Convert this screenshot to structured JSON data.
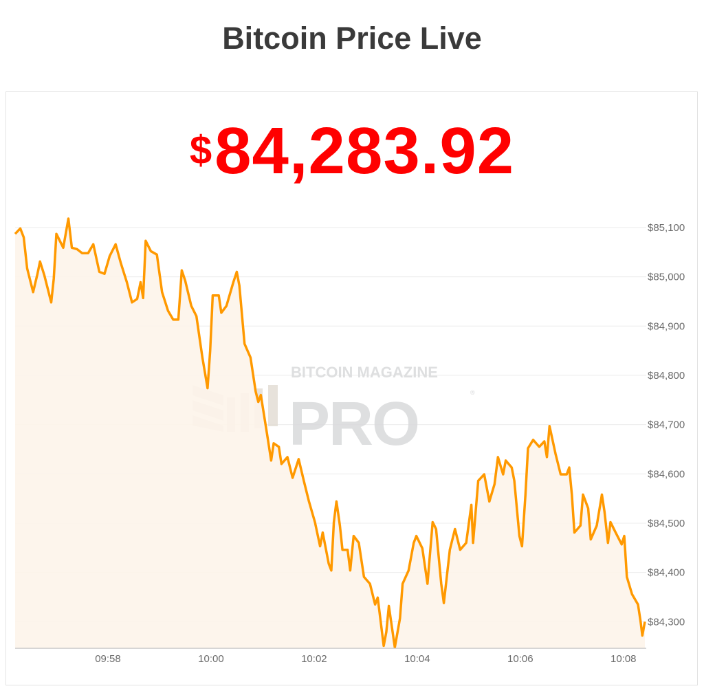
{
  "page": {
    "title": "Bitcoin Price Live"
  },
  "price": {
    "currency_symbol": "$",
    "value": "84,283.92",
    "color": "#ff0000"
  },
  "watermark": {
    "line1": "BITCOIN MAGAZINE",
    "line2": "PRO",
    "mark": "®"
  },
  "chart_data": {
    "type": "area",
    "title": "",
    "xlabel": "",
    "ylabel": "",
    "x_ticks": [
      "09:58",
      "10:00",
      "10:02",
      "10:04",
      "10:06",
      "10:08"
    ],
    "y_ticks": [
      "$84,300",
      "$84,400",
      "$84,500",
      "$84,600",
      "$84,700",
      "$84,800",
      "$84,900",
      "$85,000",
      "$85,100"
    ],
    "y_tick_values": [
      84300,
      84400,
      84500,
      84600,
      84700,
      84800,
      84900,
      85000,
      85100
    ],
    "xlim": [
      "09:56:12",
      "10:08:25"
    ],
    "ylim": [
      84246,
      85118
    ],
    "grid": "horizontal",
    "y_axis_position": "right",
    "line_color": "#ff9900",
    "fill_color": "#fdf4ea",
    "series": [
      {
        "x": [
          "09:56:12",
          "09:56:18",
          "09:56:22",
          "09:56:26",
          "09:56:33",
          "09:56:38",
          "09:56:41",
          "09:56:46",
          "09:56:54",
          "09:56:57",
          "09:57:00",
          "09:57:08",
          "09:57:14",
          "09:57:18",
          "09:57:24",
          "09:57:30",
          "09:57:37",
          "09:57:43",
          "09:57:50",
          "09:57:56",
          "09:58:02",
          "09:58:09",
          "09:58:15",
          "09:58:22",
          "09:58:28",
          "09:58:34",
          "09:58:38",
          "09:58:41",
          "09:58:44",
          "09:58:50",
          "09:58:57",
          "09:59:03",
          "09:59:10",
          "09:59:16",
          "09:59:22",
          "09:59:26",
          "09:59:30",
          "09:59:37",
          "09:59:43",
          "09:59:50",
          "09:59:56",
          "09:59:59",
          "10:00:02",
          "10:00:09",
          "10:00:12",
          "10:00:18",
          "10:00:26",
          "10:00:30",
          "10:00:33",
          "10:00:39",
          "10:00:46",
          "10:00:52",
          "10:00:55",
          "10:00:58",
          "10:01:05",
          "10:01:10",
          "10:01:13",
          "10:01:19",
          "10:01:22",
          "10:01:29",
          "10:01:35",
          "10:01:42",
          "10:01:48",
          "10:01:54",
          "10:02:01",
          "10:02:07",
          "10:02:10",
          "10:02:17",
          "10:02:20",
          "10:02:23",
          "10:02:26",
          "10:02:30",
          "10:02:33",
          "10:02:39",
          "10:02:42",
          "10:02:46",
          "10:02:52",
          "10:02:58",
          "10:03:05",
          "10:03:11",
          "10:03:14",
          "10:03:21",
          "10:03:24",
          "10:03:27",
          "10:03:34",
          "10:03:40",
          "10:03:43",
          "10:03:50",
          "10:03:56",
          "10:03:59",
          "10:04:06",
          "10:04:12",
          "10:04:18",
          "10:04:22",
          "10:04:28",
          "10:04:31",
          "10:04:38",
          "10:04:44",
          "10:04:50",
          "10:04:57",
          "10:05:03",
          "10:05:05",
          "10:05:11",
          "10:05:18",
          "10:05:24",
          "10:05:30",
          "10:05:34",
          "10:05:40",
          "10:05:43",
          "10:05:50",
          "10:05:53",
          "10:05:59",
          "10:06:02",
          "10:06:06",
          "10:06:09",
          "10:06:15",
          "10:06:22",
          "10:06:28",
          "10:06:31",
          "10:06:34",
          "10:06:41",
          "10:06:47",
          "10:06:54",
          "10:06:57",
          "10:07:00",
          "10:07:03",
          "10:07:10",
          "10:07:13",
          "10:07:19",
          "10:07:22",
          "10:07:29",
          "10:07:35",
          "10:07:38",
          "10:07:42",
          "10:07:45",
          "10:07:51",
          "10:07:58",
          "10:08:01",
          "10:08:04",
          "10:08:10",
          "10:08:17",
          "10:08:20",
          "10:08:22",
          "10:08:25"
        ],
        "y": [
          85087,
          85098,
          85080,
          85017,
          84969,
          85006,
          85031,
          85003,
          84948,
          84996,
          85087,
          85059,
          85118,
          85059,
          85056,
          85048,
          85048,
          85066,
          85010,
          85006,
          85042,
          85066,
          85028,
          84989,
          84948,
          84955,
          84989,
          84957,
          85073,
          85052,
          85045,
          84969,
          84931,
          84913,
          84913,
          85013,
          84992,
          84941,
          84920,
          84836,
          84774,
          84850,
          84962,
          84962,
          84927,
          84941,
          84989,
          85010,
          84982,
          84864,
          84836,
          84767,
          84746,
          84760,
          84683,
          84627,
          84662,
          84655,
          84620,
          84634,
          84592,
          84630,
          84586,
          84544,
          84502,
          84453,
          84481,
          84418,
          84404,
          84502,
          84544,
          84495,
          84446,
          84446,
          84404,
          84474,
          84460,
          84391,
          84377,
          84335,
          84349,
          84251,
          84279,
          84332,
          84248,
          84307,
          84377,
          84404,
          84460,
          84474,
          84449,
          84377,
          84502,
          84488,
          84377,
          84338,
          84446,
          84488,
          84446,
          84460,
          84537,
          84460,
          84586,
          84599,
          84544,
          84579,
          84634,
          84599,
          84627,
          84613,
          84586,
          84474,
          84453,
          84558,
          84652,
          84669,
          84655,
          84666,
          84634,
          84697,
          84641,
          84599,
          84599,
          84613,
          84558,
          84481,
          84495,
          84558,
          84530,
          84467,
          84495,
          84558,
          84523,
          84460,
          84502,
          84481,
          84457,
          84474,
          84391,
          84356,
          84335,
          84300,
          84272,
          84300
        ]
      }
    ]
  }
}
